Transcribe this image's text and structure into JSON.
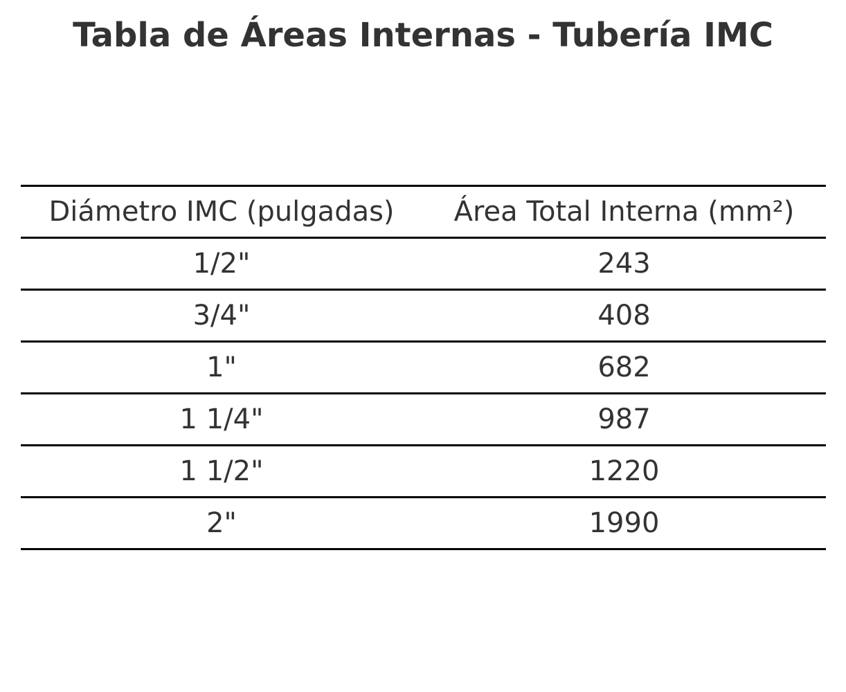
{
  "title": "Tabla de Áreas Internas - Tubería IMC",
  "chart_data": {
    "type": "table",
    "title": "Tabla de Áreas Internas - Tubería IMC",
    "columns": [
      "Diámetro IMC (pulgadas)",
      "Área Total Interna (mm²)"
    ],
    "rows": [
      [
        "1/2\"",
        "243"
      ],
      [
        "3/4\"",
        "408"
      ],
      [
        "1\"",
        "682"
      ],
      [
        "1 1/4\"",
        "987"
      ],
      [
        "1 1/2\"",
        "1220"
      ],
      [
        "2\"",
        "1990"
      ]
    ]
  },
  "colors": {
    "text": "#333333",
    "rules": "#000000",
    "background": "#ffffff"
  }
}
